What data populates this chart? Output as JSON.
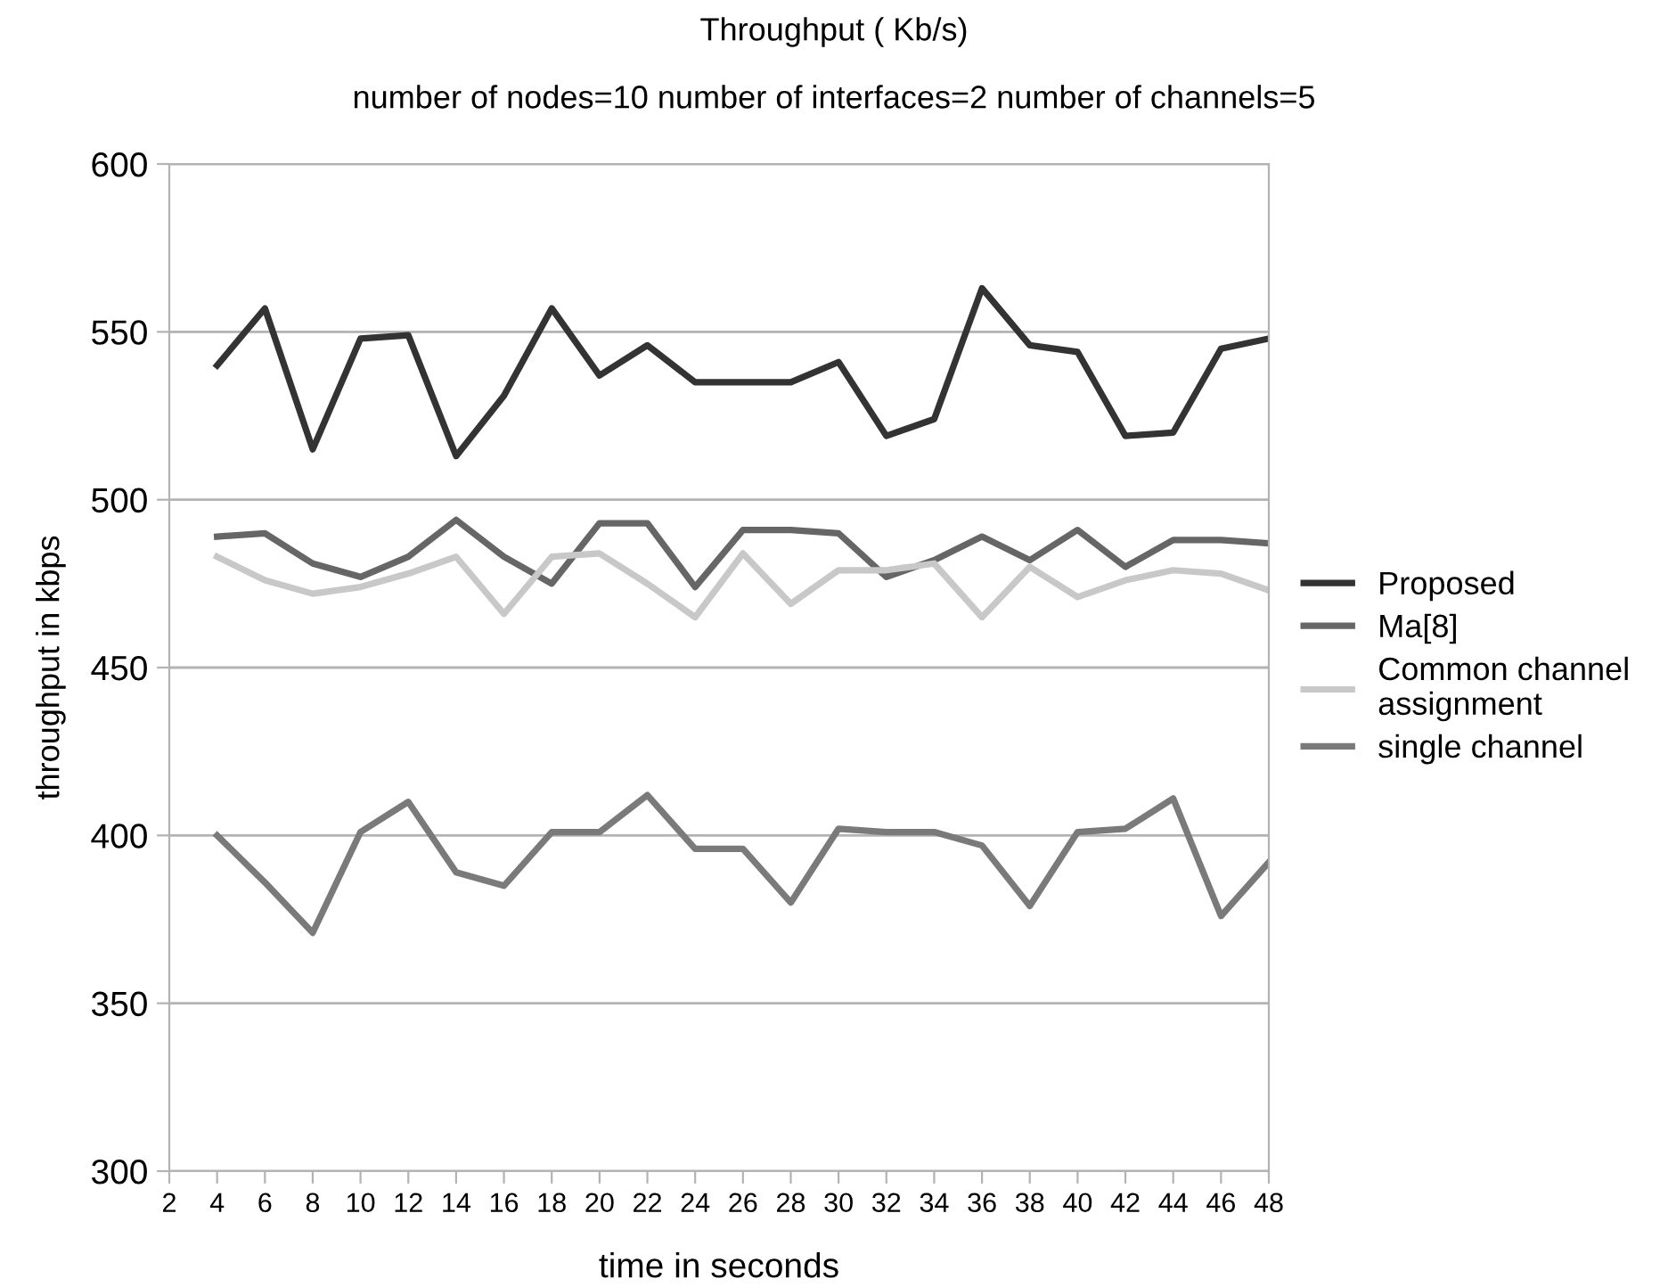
{
  "chart_data": {
    "type": "line",
    "title": "Throughput ( Kb/s)",
    "subtitle": "number of nodes=10 number of interfaces=2 number of channels=5",
    "xlabel": "time in seconds",
    "ylabel": "throughput in kbps",
    "x": [
      4,
      6,
      8,
      10,
      12,
      14,
      16,
      18,
      20,
      22,
      24,
      26,
      28,
      30,
      32,
      34,
      36,
      38,
      40,
      42,
      44,
      46,
      48
    ],
    "series": [
      {
        "name": "Proposed",
        "color": "#333333",
        "values": [
          540,
          557,
          515,
          548,
          549,
          513,
          531,
          557,
          537,
          546,
          535,
          535,
          535,
          541,
          519,
          524,
          563,
          546,
          544,
          519,
          520,
          545,
          548
        ]
      },
      {
        "name": "Ma[8]",
        "color": "#666666",
        "values": [
          489,
          490,
          481,
          477,
          483,
          494,
          483,
          475,
          493,
          493,
          474,
          491,
          491,
          490,
          477,
          482,
          489,
          482,
          491,
          480,
          488,
          488,
          487
        ]
      },
      {
        "name": "Common channel\nassignment",
        "color": "#c8c8c8",
        "values": [
          483,
          476,
          472,
          474,
          478,
          483,
          466,
          483,
          484,
          475,
          465,
          484,
          469,
          479,
          479,
          481,
          465,
          480,
          471,
          476,
          479,
          478,
          473
        ]
      },
      {
        "name": "single channel",
        "color": "#7a7a7a",
        "values": [
          400,
          386,
          371,
          401,
          410,
          389,
          385,
          401,
          401,
          412,
          396,
          396,
          380,
          402,
          401,
          401,
          397,
          379,
          401,
          402,
          411,
          376,
          392
        ]
      }
    ],
    "xlim": [
      2,
      48
    ],
    "xticks": [
      2,
      4,
      6,
      8,
      10,
      12,
      14,
      16,
      18,
      20,
      22,
      24,
      26,
      28,
      30,
      32,
      34,
      36,
      38,
      40,
      42,
      44,
      46,
      48
    ],
    "ylim": [
      300,
      600
    ],
    "yticks": [
      300,
      350,
      400,
      450,
      500,
      550,
      600
    ],
    "grid": "y",
    "legend": "right",
    "marker": "none",
    "line_style": "solid"
  }
}
